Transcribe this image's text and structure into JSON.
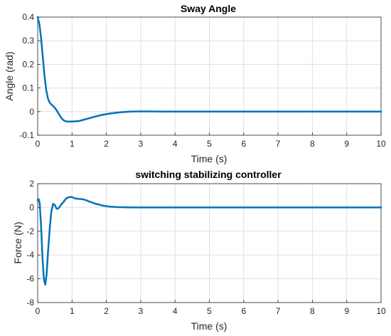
{
  "chart_data": [
    {
      "type": "line",
      "title": "Sway Angle",
      "xlabel": "Time (s)",
      "ylabel": "Angle (rad)",
      "xlim": [
        0,
        10
      ],
      "ylim": [
        -0.1,
        0.4
      ],
      "xticks": [
        "0",
        "1",
        "2",
        "3",
        "4",
        "5",
        "6",
        "7",
        "8",
        "9",
        "10"
      ],
      "yticks": [
        "-0.1",
        "0",
        "0.1",
        "0.2",
        "0.3",
        "0.4"
      ],
      "grid": true,
      "color": "#0072bd",
      "series": [
        {
          "x": [
            0,
            0.05,
            0.1,
            0.15,
            0.2,
            0.25,
            0.3,
            0.35,
            0.4,
            0.45,
            0.5,
            0.55,
            0.6,
            0.65,
            0.7,
            0.75,
            0.8,
            0.85,
            0.9,
            1.0,
            1.1,
            1.2,
            1.3,
            1.5,
            1.7,
            1.9,
            2.1,
            2.4,
            2.7,
            3.0,
            3.3,
            3.6,
            4.0,
            5.0,
            6.0,
            7.0,
            8.0,
            9.0,
            10.0
          ],
          "values": [
            0.4,
            0.37,
            0.31,
            0.23,
            0.15,
            0.09,
            0.055,
            0.038,
            0.03,
            0.024,
            0.016,
            0.006,
            -0.006,
            -0.018,
            -0.029,
            -0.036,
            -0.04,
            -0.042,
            -0.042,
            -0.042,
            -0.041,
            -0.04,
            -0.036,
            -0.028,
            -0.02,
            -0.013,
            -0.008,
            -0.003,
            0.0,
            0.001,
            0.001,
            0.0,
            0.0,
            0.0,
            0.0,
            0.0,
            0.0,
            0.0,
            0.0
          ]
        }
      ]
    },
    {
      "type": "line",
      "title": "switching stabilizing controller",
      "xlabel": "Time (s)",
      "ylabel": "Force (N)",
      "xlim": [
        0,
        10
      ],
      "ylim": [
        -8,
        2
      ],
      "xticks": [
        "0",
        "1",
        "2",
        "3",
        "4",
        "5",
        "6",
        "7",
        "8",
        "9",
        "10"
      ],
      "yticks": [
        "-8",
        "-6",
        "-4",
        "-2",
        "0",
        "2"
      ],
      "grid": true,
      "color": "#0072bd",
      "series": [
        {
          "x": [
            0,
            0.03,
            0.06,
            0.1,
            0.14,
            0.18,
            0.22,
            0.26,
            0.3,
            0.35,
            0.4,
            0.45,
            0.5,
            0.55,
            0.6,
            0.65,
            0.7,
            0.75,
            0.8,
            0.85,
            0.9,
            0.95,
            1.0,
            1.05,
            1.1,
            1.2,
            1.3,
            1.4,
            1.5,
            1.7,
            1.9,
            2.1,
            2.3,
            2.6,
            2.9,
            3.2,
            3.5,
            4.0,
            5.0,
            6.0,
            7.0,
            8.0,
            9.0,
            10.0
          ],
          "values": [
            0.6,
            0.7,
            0.3,
            -1.6,
            -4.2,
            -6.0,
            -6.5,
            -5.6,
            -3.8,
            -1.8,
            -0.3,
            0.3,
            0.2,
            -0.1,
            -0.1,
            0.1,
            0.3,
            0.45,
            0.65,
            0.8,
            0.85,
            0.88,
            0.87,
            0.8,
            0.75,
            0.72,
            0.7,
            0.62,
            0.5,
            0.3,
            0.15,
            0.07,
            0.03,
            0.01,
            0.0,
            0.0,
            0.0,
            0.0,
            0.0,
            0.0,
            0.0,
            0.0,
            0.0,
            0.0
          ]
        }
      ]
    }
  ]
}
